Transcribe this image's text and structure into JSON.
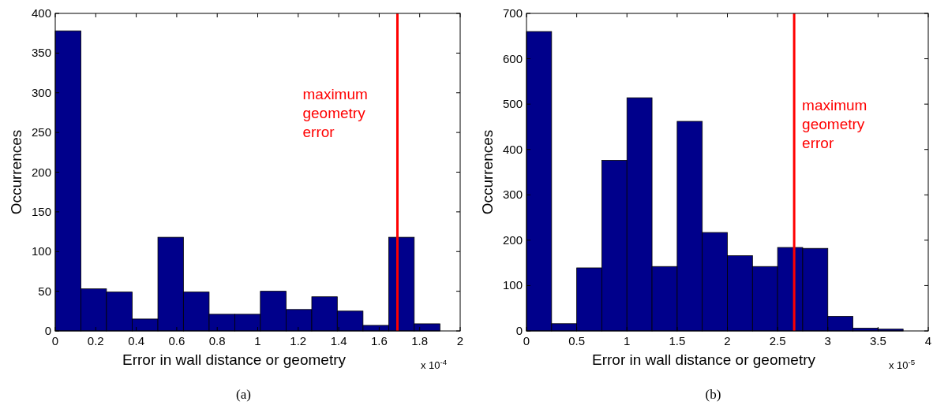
{
  "chart_data": [
    {
      "type": "histogram",
      "xlabel": "Error in wall distance or geometry",
      "ylabel": "Occurrences",
      "color": "#00008b",
      "bins": [
        0,
        0.127,
        0.253,
        0.38,
        0.507,
        0.633,
        0.76,
        0.887,
        1.013,
        1.14,
        1.267,
        1.393,
        1.52,
        1.647,
        1.773,
        1.9
      ],
      "values": [
        378,
        53,
        49,
        15,
        118,
        49,
        21,
        21,
        50,
        27,
        43,
        25,
        7,
        118,
        9
      ],
      "xlim": [
        0,
        2
      ],
      "xticks": [
        0,
        0.2,
        0.4,
        0.6,
        0.8,
        1,
        1.2,
        1.4,
        1.6,
        1.8,
        2
      ],
      "ylim": [
        0,
        400
      ],
      "yticks": [
        0,
        50,
        100,
        150,
        200,
        250,
        300,
        350,
        400
      ],
      "ref_lines": [
        {
          "axis": "x",
          "value": 1.69,
          "label": "maximum geometry error",
          "color": "#ff0000"
        }
      ],
      "grid": false,
      "annotations": [
        "x 10$^{-4}$",
        "(a)"
      ]
    },
    {
      "type": "histogram",
      "xlabel": "Error in wall distance or geometry",
      "ylabel": "Occurrences",
      "color": "#00008b",
      "bins": [
        0,
        0.25,
        0.5,
        0.75,
        1,
        1.25,
        1.5,
        1.75,
        2,
        2.25,
        2.5,
        2.75,
        3,
        3.25,
        3.5,
        3.75
      ],
      "values": [
        660,
        16,
        139,
        376,
        514,
        142,
        462,
        217,
        166,
        142,
        184,
        182,
        32,
        6,
        4
      ],
      "xlim": [
        0,
        4
      ],
      "xticks": [
        0,
        0.5,
        1,
        1.5,
        2,
        2.5,
        3,
        3.5,
        4
      ],
      "ylim": [
        0,
        700
      ],
      "yticks": [
        0,
        100,
        200,
        300,
        400,
        500,
        600,
        700
      ],
      "ref_lines": [
        {
          "axis": "x",
          "value": 2.665,
          "label": "maximum geometry error",
          "color": "#ff0000"
        }
      ],
      "grid": false,
      "annotations": [
        "x 10$^{-5}$",
        "(b)"
      ]
    }
  ]
}
